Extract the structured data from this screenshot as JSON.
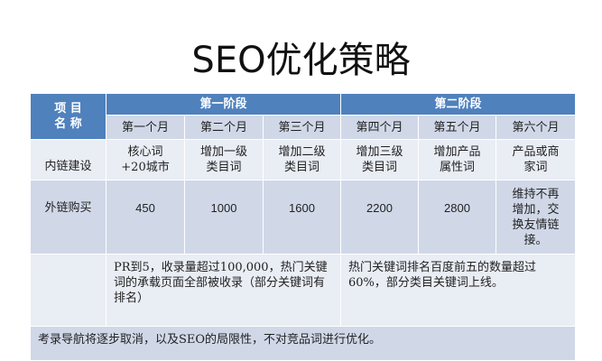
{
  "title": "SEO优化策略",
  "header": {
    "item_name": "项 目 名 称",
    "phase1": "第一阶段",
    "phase2": "第二阶段",
    "months": [
      "第一个月",
      "第二个月",
      "第三个月",
      "第四个月",
      "第五个月",
      "第六个月"
    ]
  },
  "rows": [
    {
      "label": "内链建设",
      "cells": [
        "核心词 +20城市",
        "增加一级类目词",
        "增加二级类目词",
        "增加三级类目词",
        "增加产品属性词",
        "产品或商家词"
      ]
    },
    {
      "label": "外链购买",
      "cells": [
        "450",
        "1000",
        "1600",
        "2200",
        "2800",
        "维持不再增加，交换友情链接。"
      ]
    }
  ],
  "goals": {
    "phase1": "PR到5，收录量超过100,000，热门关键词的承载页面全部被收录（部分关键词有排名）",
    "phase2": "热门关键词排名百度前五的数量超过60%，部分类目关键词上线。"
  },
  "note": "考录导航将逐步取消，以及SEO的局限性，不对竞品词进行优化。",
  "colors": {
    "header": "#4f81bd",
    "row_light": "#e9edf4",
    "row_dark": "#d0d8e8"
  }
}
